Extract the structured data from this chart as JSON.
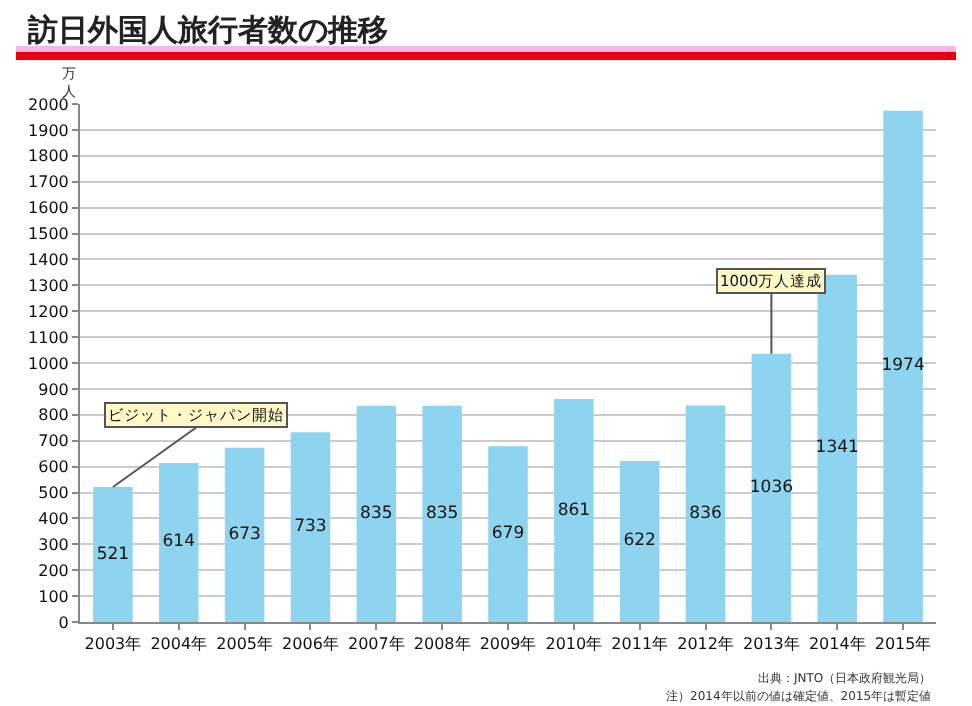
{
  "chart_data": {
    "type": "bar",
    "title": "訪日外国人旅行者数の推移",
    "ylabel": "万人",
    "categories": [
      "2003年",
      "2004年",
      "2005年",
      "2006年",
      "2007年",
      "2008年",
      "2009年",
      "2010年",
      "2011年",
      "2012年",
      "2013年",
      "2014年",
      "2015年"
    ],
    "values": [
      521,
      614,
      673,
      733,
      835,
      835,
      679,
      861,
      622,
      836,
      1036,
      1341,
      1974
    ],
    "color": "#8fd4ee",
    "data_labels": true,
    "grid": "y",
    "ylim": [
      0,
      2000
    ],
    "yticks": [
      0,
      100,
      200,
      300,
      400,
      500,
      600,
      700,
      800,
      900,
      1000,
      1100,
      1200,
      1300,
      1400,
      1500,
      1600,
      1700,
      1800,
      1900,
      2000
    ],
    "annotations": [
      {
        "text": "ビジット・ジャパン開始",
        "x": "2003年",
        "y": 521
      },
      {
        "text": "1000万人達成",
        "x": "2013年",
        "y": 1036
      },
      "出典：JNTO（日本政府観光局）",
      "注）2014年以前の値は確定値、2015年は暫定値"
    ]
  }
}
